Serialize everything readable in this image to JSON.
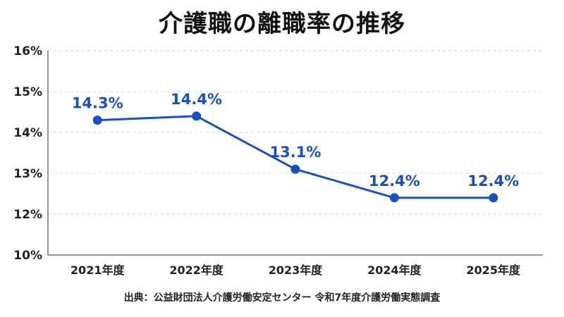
{
  "chart_data": {
    "type": "line",
    "title": "介護職の離職率の推移",
    "categories": [
      "2021年度",
      "2022年度",
      "2023年度",
      "2024年度",
      "2025年度"
    ],
    "series": [
      {
        "values": [
          14.3,
          14.4,
          13.1,
          12.4,
          12.4
        ]
      }
    ],
    "data_labels": [
      "14.3%",
      "14.4%",
      "13.1%",
      "12.4%",
      "12.4%"
    ],
    "y_ticks": [
      10,
      12,
      13,
      14,
      15,
      16
    ],
    "y_tick_labels": [
      "10%",
      "12%",
      "13%",
      "14%",
      "15%",
      "16%"
    ],
    "ylim": [
      10,
      16
    ],
    "grid": true,
    "color": "#1a4fc4"
  },
  "source": "出典：公益財団法人介護労働安定センター 令和7年度介護労働実態調査"
}
